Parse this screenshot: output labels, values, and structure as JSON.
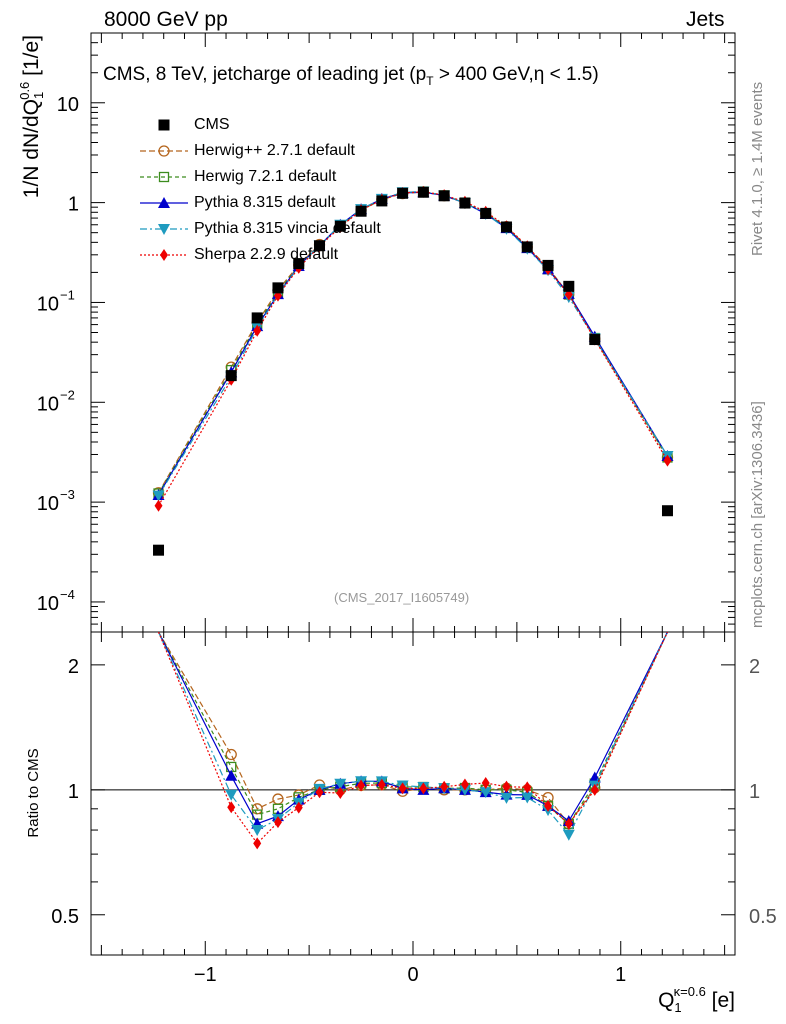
{
  "header": {
    "left": "8000 GeV pp",
    "right": "Jets"
  },
  "side_text": {
    "rivet": "Rivet 4.1.0, ≥ 1.4M events",
    "mcplots": "mcplots.cern.ch [arXiv:1306.3436]"
  },
  "chart_data": {
    "type": "line",
    "title": "CMS, 8 TeV, jetcharge of leading jet (pT > 400 GeV,η < 1.5)",
    "title_parts": {
      "prefix": "CMS, 8 TeV, jetcharge of leading jet (p",
      "sub": "T",
      "suffix": " > 400 GeV,η < 1.5)"
    },
    "analysis_id": "(CMS_2017_I1605749)",
    "ylabel": "1/N dN/dQ1^0.6 [1/e]",
    "ylabel_parts": {
      "main": "1/N dN/dQ",
      "sub": "1",
      "sup": "0.6",
      "unit": " [1/e]"
    },
    "xlabel": "Q1^κ=0.6 [e]",
    "xlabel_parts": {
      "main": "Q",
      "sub": "1",
      "sup": "κ=0.6",
      "unit": " [e]"
    },
    "ratio_ylabel": "Ratio to CMS",
    "xlim": [
      -1.55,
      1.55
    ],
    "ylim": [
      5e-05,
      50
    ],
    "yscale": "log",
    "ratio_ylim": [
      0.4,
      2.4
    ],
    "x_ticks": [
      -1,
      0,
      1
    ],
    "x_tick_labels": [
      "−1",
      "0",
      "1"
    ],
    "y_ticks": [
      0.0001,
      0.001,
      0.01,
      0.1,
      1,
      10
    ],
    "y_tick_labels": [
      {
        "base": "10",
        "exp": "−4"
      },
      {
        "base": "10",
        "exp": "−3"
      },
      {
        "base": "10",
        "exp": "−2"
      },
      {
        "base": "10",
        "exp": "−1"
      },
      {
        "base": "1",
        "exp": ""
      },
      {
        "base": "10",
        "exp": ""
      }
    ],
    "ratio_ticks": [
      0.5,
      1,
      2
    ],
    "ratio_tick_labels": [
      "0.5",
      "1",
      "2"
    ],
    "x": [
      -1.225,
      -0.875,
      -0.75,
      -0.65,
      -0.55,
      -0.45,
      -0.35,
      -0.25,
      -0.15,
      -0.05,
      0.05,
      0.15,
      0.25,
      0.35,
      0.45,
      0.55,
      0.65,
      0.75,
      0.875,
      1.225
    ],
    "series": [
      {
        "name": "CMS",
        "color": "#000000",
        "marker": "square-filled",
        "dash": "none",
        "is_data": true,
        "values": [
          0.00033,
          0.0185,
          0.07,
          0.14,
          0.245,
          0.37,
          0.58,
          0.82,
          1.04,
          1.24,
          1.27,
          1.17,
          0.99,
          0.78,
          0.57,
          0.36,
          0.235,
          0.145,
          0.0425,
          0.00082
        ]
      },
      {
        "name": "Herwig++ 2.7.1 default",
        "color": "#b5651d",
        "marker": "circle-open",
        "dash": "6,3",
        "values": [
          0.00124,
          0.0225,
          0.063,
          0.133,
          0.238,
          0.38,
          0.58,
          0.84,
          1.07,
          1.23,
          1.28,
          1.17,
          0.99,
          0.78,
          0.575,
          0.36,
          0.225,
          0.12,
          0.043,
          0.0028
        ]
      },
      {
        "name": "Herwig 7.2.1 default",
        "color": "#3c8c1e",
        "marker": "square-open",
        "dash": "4,3",
        "values": [
          0.00122,
          0.021,
          0.061,
          0.126,
          0.235,
          0.37,
          0.59,
          0.85,
          1.08,
          1.26,
          1.29,
          1.18,
          1.0,
          0.78,
          0.57,
          0.355,
          0.215,
          0.12,
          0.044,
          0.0028
        ]
      },
      {
        "name": "Pythia 8.315 default",
        "color": "#0000cc",
        "marker": "triangle-up",
        "dash": "none",
        "values": [
          0.00118,
          0.02,
          0.058,
          0.121,
          0.232,
          0.37,
          0.6,
          0.86,
          1.09,
          1.25,
          1.27,
          1.18,
          0.99,
          0.77,
          0.555,
          0.35,
          0.215,
          0.122,
          0.0455,
          0.0029
        ]
      },
      {
        "name": "Pythia 8.315 vincia default",
        "color": "#1e9bbf",
        "marker": "triangle-down",
        "dash": "7,3,2,3",
        "values": [
          0.00116,
          0.018,
          0.056,
          0.119,
          0.228,
          0.372,
          0.6,
          0.86,
          1.09,
          1.27,
          1.29,
          1.18,
          0.99,
          0.77,
          0.545,
          0.345,
          0.21,
          0.113,
          0.0435,
          0.0029
        ]
      },
      {
        "name": "Sherpa 2.2.9 default",
        "color": "#ee0000",
        "marker": "diamond",
        "dash": "2,2",
        "values": [
          0.00092,
          0.0168,
          0.052,
          0.117,
          0.222,
          0.365,
          0.57,
          0.84,
          1.07,
          1.25,
          1.28,
          1.19,
          1.02,
          0.81,
          0.58,
          0.365,
          0.215,
          0.12,
          0.0425,
          0.0026
        ]
      }
    ]
  }
}
